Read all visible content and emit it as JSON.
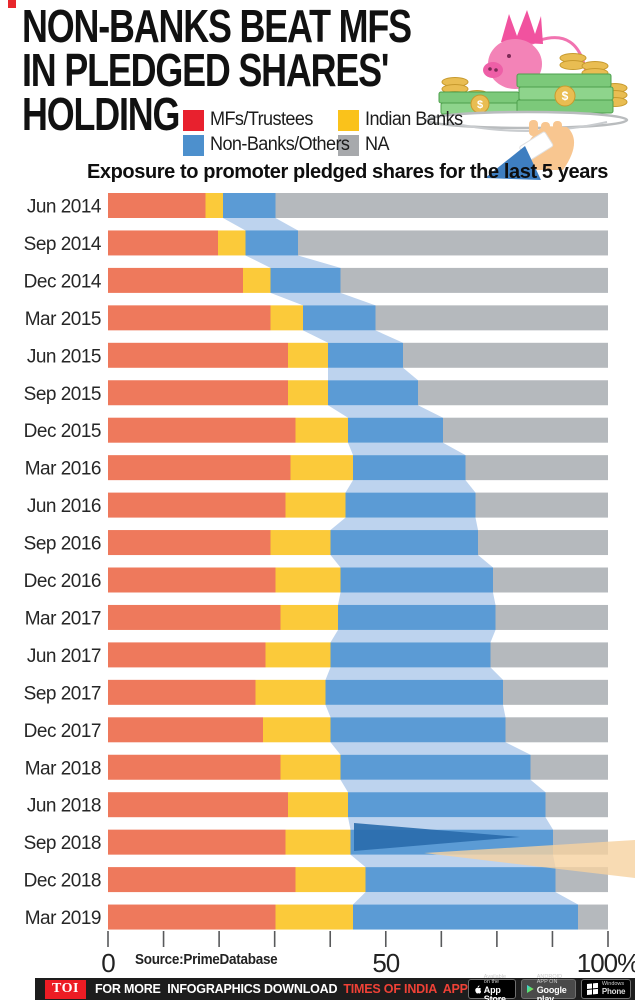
{
  "title": {
    "line1": "NON-BANKS BEAT MFS",
    "line2": "IN PLEDGED SHARES'",
    "line3": "HOLDING"
  },
  "subtitle": "Exposure to promoter pledged shares for the last 5 years",
  "legend": {
    "items": [
      {
        "label": "MFs/Trustees",
        "color": "#e8212e"
      },
      {
        "label": "Indian Banks",
        "color": "#fac21b"
      },
      {
        "label": "Non-Banks/Others",
        "color": "#4d90cd"
      },
      {
        "label": "NA",
        "color": "#a7a9ac"
      }
    ]
  },
  "source": "Source:PrimeDatabase",
  "chart_data": {
    "type": "bar",
    "orientation": "horizontal",
    "stacked": true,
    "unit": "%",
    "xlim": [
      0,
      100
    ],
    "x_tick_labels": [
      "0",
      "",
      "",
      "",
      "",
      "50",
      "",
      "",
      "",
      "100%"
    ],
    "categories": [
      "Jun 2014",
      "Sep 2014",
      "Dec 2014",
      "Mar 2015",
      "Jun 2015",
      "Sep 2015",
      "Dec 2015",
      "Mar 2016",
      "Jun 2016",
      "Sep 2016",
      "Dec 2016",
      "Mar 2017",
      "Jun 2017",
      "Sep 2017",
      "Dec 2017",
      "Mar 2018",
      "Jun 2018",
      "Sep 2018",
      "Dec 2018",
      "Mar 2019"
    ],
    "series": [
      {
        "name": "MFs/Trustees",
        "color": "#ee795c",
        "values": [
          19.5,
          22,
          27,
          32.5,
          36,
          36,
          37.5,
          36.5,
          35.5,
          32.5,
          33.5,
          34.5,
          31.5,
          29.5,
          31,
          34.5,
          36,
          35.5,
          37.5,
          33.5
        ]
      },
      {
        "name": "Indian Banks",
        "color": "#fbca3a",
        "values": [
          3.5,
          5.5,
          5.5,
          6.5,
          8,
          8,
          10.5,
          12.5,
          12,
          12,
          13,
          11.5,
          13,
          14,
          13.5,
          12,
          12,
          13,
          14,
          15.5
        ]
      },
      {
        "name": "Non-Banks/Others",
        "color": "#5b9bd5",
        "values": [
          10.5,
          10.5,
          14,
          14.5,
          15,
          18,
          19,
          22.5,
          26,
          29.5,
          30.5,
          31.5,
          32,
          35.5,
          35,
          38,
          39.5,
          40.5,
          38,
          45
        ]
      },
      {
        "name": "NA",
        "color": "#b5b9bd",
        "values": [
          66.5,
          62,
          53.5,
          46.5,
          41,
          38,
          33,
          28.5,
          26.5,
          26,
          23,
          22.5,
          23.5,
          21,
          20.5,
          15.5,
          12.5,
          11,
          10.5,
          6
        ]
      }
    ],
    "connector_color": "#bdd3ee",
    "legend_position": "top"
  },
  "footer": {
    "toi": "TOI",
    "text_white": "FOR MORE  INFOGRAPHICS DOWNLOAD",
    "text_red": "TIMES OF INDIA  APP",
    "badges": [
      {
        "icon": "apple-icon",
        "top": "Available on the",
        "bottom": "App Store"
      },
      {
        "icon": "google-play-icon",
        "top": "ANDROID APP ON",
        "bottom": "Google play"
      },
      {
        "icon": "windows-icon",
        "top": "Windows",
        "bottom": "Phone"
      }
    ]
  }
}
